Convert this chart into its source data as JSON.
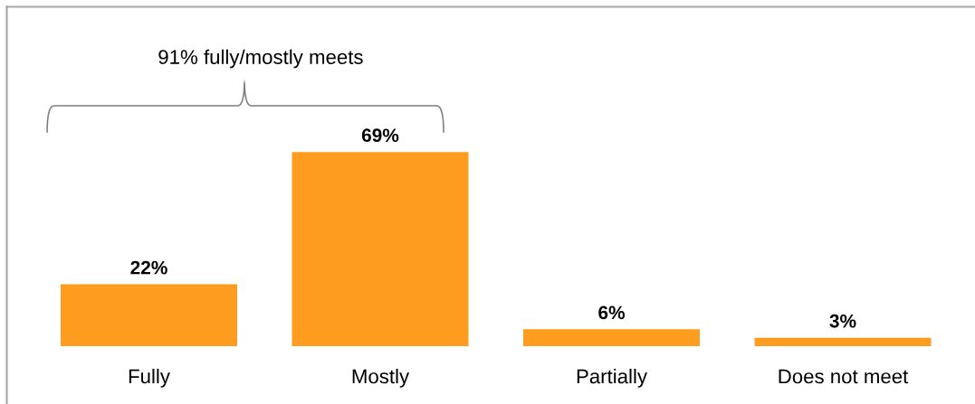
{
  "chart_data": {
    "type": "bar",
    "categories": [
      "Fully",
      "Mostly",
      "Partially",
      "Does not meet"
    ],
    "values": [
      22,
      69,
      6,
      3
    ],
    "value_labels": [
      "22%",
      "69%",
      "6%",
      "3%"
    ],
    "color": "#fd9c1e",
    "annotations": [
      "91% fully/mostly meets"
    ],
    "tick_labels": "x"
  }
}
